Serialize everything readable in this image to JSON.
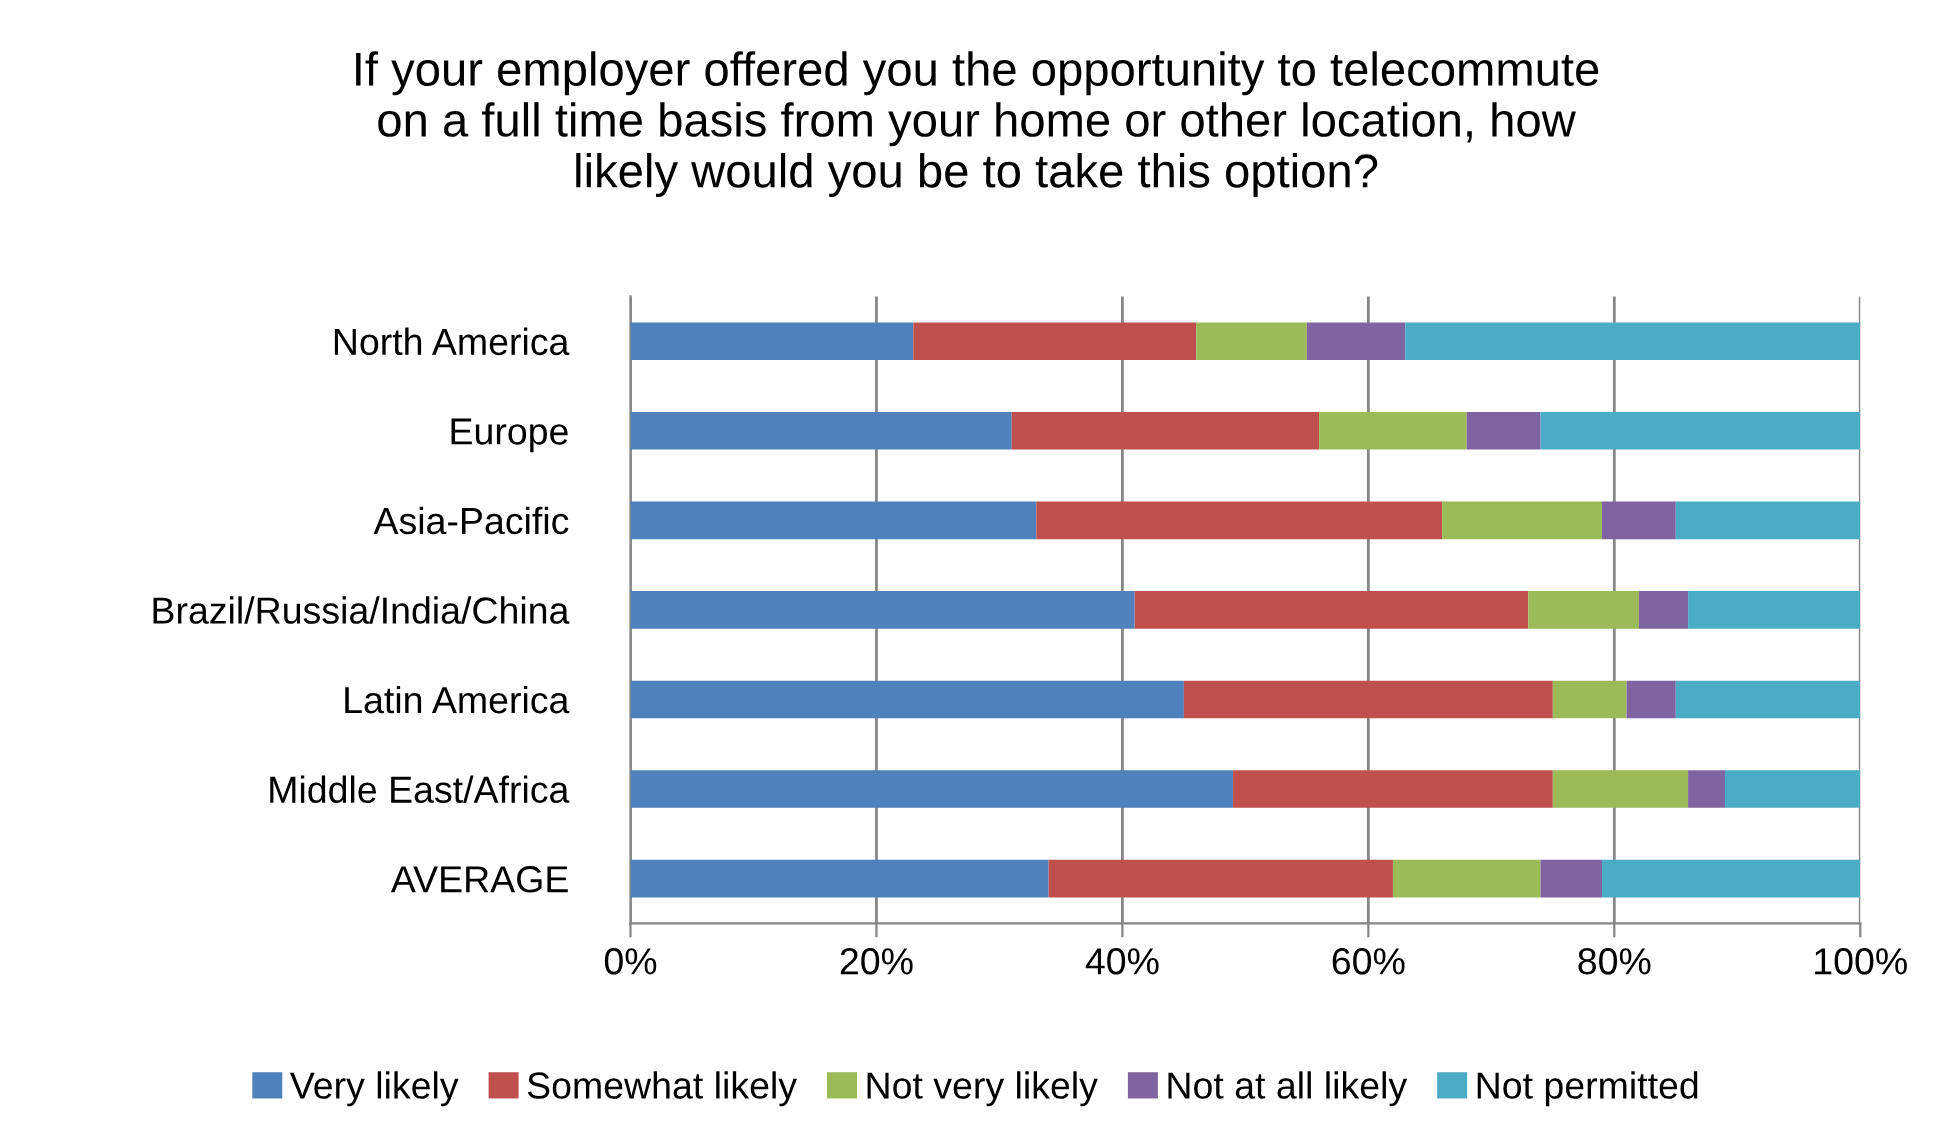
{
  "chart_data": {
    "type": "bar",
    "orientation": "horizontal",
    "stacked": true,
    "title": "If your employer offered you the opportunity to telecommute\non a full time basis from your home or other location, how\nlikely would you be to take this option?",
    "categories": [
      "North America",
      "Europe",
      "Asia-Pacific",
      "Brazil/Russia/India/China",
      "Latin America",
      "Middle East/Africa",
      "AVERAGE"
    ],
    "series": [
      {
        "name": "Very likely",
        "color": "#4f81bd",
        "values": [
          23,
          31,
          33,
          41,
          45,
          49,
          34
        ]
      },
      {
        "name": "Somewhat likely",
        "color": "#c0504d",
        "values": [
          23,
          25,
          33,
          32,
          30,
          26,
          28
        ]
      },
      {
        "name": "Not very likely",
        "color": "#9bbb59",
        "values": [
          9,
          12,
          13,
          9,
          6,
          11,
          12
        ]
      },
      {
        "name": "Not at all likely",
        "color": "#8064a2",
        "values": [
          8,
          6,
          6,
          4,
          4,
          3,
          5
        ]
      },
      {
        "name": "Not permitted",
        "color": "#4bacc6",
        "values": [
          37,
          26,
          15,
          14,
          15,
          11,
          21
        ]
      }
    ],
    "xlim": [
      0,
      100
    ],
    "xticks": [
      {
        "value": 0,
        "label": "0%"
      },
      {
        "value": 20,
        "label": "20%"
      },
      {
        "value": 40,
        "label": "40%"
      },
      {
        "value": 60,
        "label": "60%"
      },
      {
        "value": 80,
        "label": "80%"
      },
      {
        "value": 100,
        "label": "100%"
      }
    ],
    "grid": "x",
    "legend": "bottom"
  }
}
